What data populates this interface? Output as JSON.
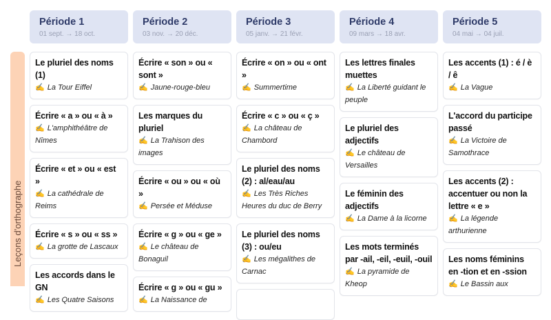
{
  "row_label": "Leçons d'orthographe",
  "icon": "writing-hand-icon",
  "colors": {
    "header_bg": "#dfe4f3",
    "band_bg": "#fdd3b6",
    "title": "#2e3a68"
  },
  "periods": [
    {
      "title": "Période 1",
      "dates": "01 sept. → 18 oct.",
      "lessons": [
        {
          "name": "Le pluriel des noms (1)",
          "work": "La Tour Eiffel"
        },
        {
          "name": "Écrire « a » ou « à »",
          "work": "L'amphithéâtre de Nîmes"
        },
        {
          "name": "Écrire « et » ou « est »",
          "work": "La cathédrale de Reims"
        },
        {
          "name": "Écrire « s » ou « ss »",
          "work": "La grotte de Lascaux"
        },
        {
          "name": "Les accords dans le GN",
          "work": "Les Quatre Saisons"
        }
      ]
    },
    {
      "title": "Période 2",
      "dates": "03 nov. → 20 déc.",
      "lessons": [
        {
          "name": "Écrire « son » ou « sont »",
          "work": "Jaune-rouge-bleu"
        },
        {
          "name": "Les marques du pluriel",
          "work": "La Trahison des images"
        },
        {
          "name": "Écrire « ou » ou « où »",
          "work": "Persée et Méduse"
        },
        {
          "name": "Écrire « g » ou « ge »",
          "work": "Le château de Bonaguil"
        },
        {
          "name": "Écrire « g » ou « gu »",
          "work": "La Naissance de"
        }
      ]
    },
    {
      "title": "Période 3",
      "dates": "05 janv. → 21 févr.",
      "lessons": [
        {
          "name": "Écrire « on » ou « ont »",
          "work": "Summertime"
        },
        {
          "name": "Écrire « c » ou « ç »",
          "work": "La château de Chambord"
        },
        {
          "name": "Le pluriel des noms (2) : al/eau/au",
          "work": "Les Très Riches Heures du duc de Berry"
        },
        {
          "name": "Le pluriel des noms (3) : ou/eu",
          "work": "Les mégalithes de Carnac"
        },
        {
          "name": "",
          "work": ""
        }
      ]
    },
    {
      "title": "Période 4",
      "dates": "09 mars → 18 avr.",
      "lessons": [
        {
          "name": "Les lettres finales muettes",
          "work": "La Liberté guidant le peuple"
        },
        {
          "name": "Le pluriel des adjectifs",
          "work": "Le château de Versailles"
        },
        {
          "name": "Le féminin des adjectifs",
          "work": "La Dame à la licorne"
        },
        {
          "name": "Les mots terminés par -ail, -eil, -euil, -ouil",
          "work": "La pyramide de Kheop"
        }
      ]
    },
    {
      "title": "Période 5",
      "dates": "04 mai → 04 juil.",
      "lessons": [
        {
          "name": "Les accents (1) : é / è / ê",
          "work": "La Vague"
        },
        {
          "name": "L'accord du participe passé",
          "work": "La Victoire de Samothrace"
        },
        {
          "name": "Les accents (2) : accentuer ou non la lettre « e »",
          "work": "La légende arthurienne"
        },
        {
          "name": "Les noms féminins en -tion et en -ssion",
          "work": "Le Bassin aux"
        }
      ]
    }
  ]
}
